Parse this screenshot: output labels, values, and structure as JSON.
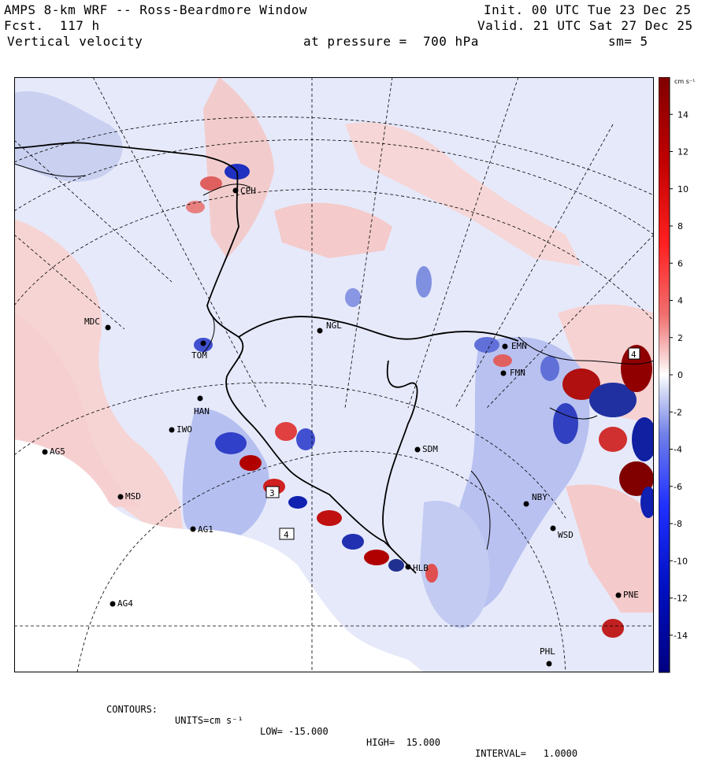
{
  "header": {
    "title": "AMPS 8-km WRF -- Ross-Beardmore Window",
    "forecast": "Fcst.  117 h",
    "field": "Vertical velocity",
    "init": "Init. 00 UTC Tue 23 Dec 25",
    "valid": "Valid. 21 UTC Sat 27 Dec 25",
    "pressure": "at pressure =  700 hPa",
    "smoothing": "sm= 5"
  },
  "colorbar": {
    "units": "cm s⁻¹",
    "tick_labels": [
      "14",
      "12",
      "10",
      "8",
      "6",
      "4",
      "2",
      "0",
      "-2",
      "-4",
      "-6",
      "-8",
      "-10",
      "-12",
      "-14"
    ],
    "min": -16,
    "max": 16,
    "colors": {
      "dark_red": "#8b0000",
      "red": "#ff2020",
      "light_red": "#f4b8b8",
      "neutral": "#ffffff",
      "light_blue": "#c8cff2",
      "blue": "#2030ff",
      "dark_blue": "#00008b"
    }
  },
  "stations": [
    {
      "id": "CPH",
      "label": "CPH"
    },
    {
      "id": "MDC",
      "label": "MDC"
    },
    {
      "id": "NGL",
      "label": "NGL"
    },
    {
      "id": "EMN",
      "label": "EMN"
    },
    {
      "id": "FMN",
      "label": "FMN"
    },
    {
      "id": "TOM",
      "label": "TOM"
    },
    {
      "id": "HAN",
      "label": "HAN"
    },
    {
      "id": "IWO",
      "label": "IWO"
    },
    {
      "id": "AG5",
      "label": "AG5"
    },
    {
      "id": "SDM",
      "label": "SDM"
    },
    {
      "id": "MSD",
      "label": "MSD"
    },
    {
      "id": "AG1",
      "label": "AG1"
    },
    {
      "id": "NBY",
      "label": "NBY"
    },
    {
      "id": "WSD",
      "label": "WSD"
    },
    {
      "id": "HLB",
      "label": "HLB"
    },
    {
      "id": "AG4",
      "label": "AG4"
    },
    {
      "id": "PNE",
      "label": "PNE"
    },
    {
      "id": "PHL",
      "label": "PHL"
    }
  ],
  "map_box_labels": [
    "3",
    "4",
    "4"
  ],
  "footer": {
    "contours": "CONTOURS:",
    "units_label": "UNITS=cm s⁻¹",
    "low": "LOW= -15.000",
    "high": "HIGH=  15.000",
    "interval": "INTERVAL=   1.0000"
  }
}
